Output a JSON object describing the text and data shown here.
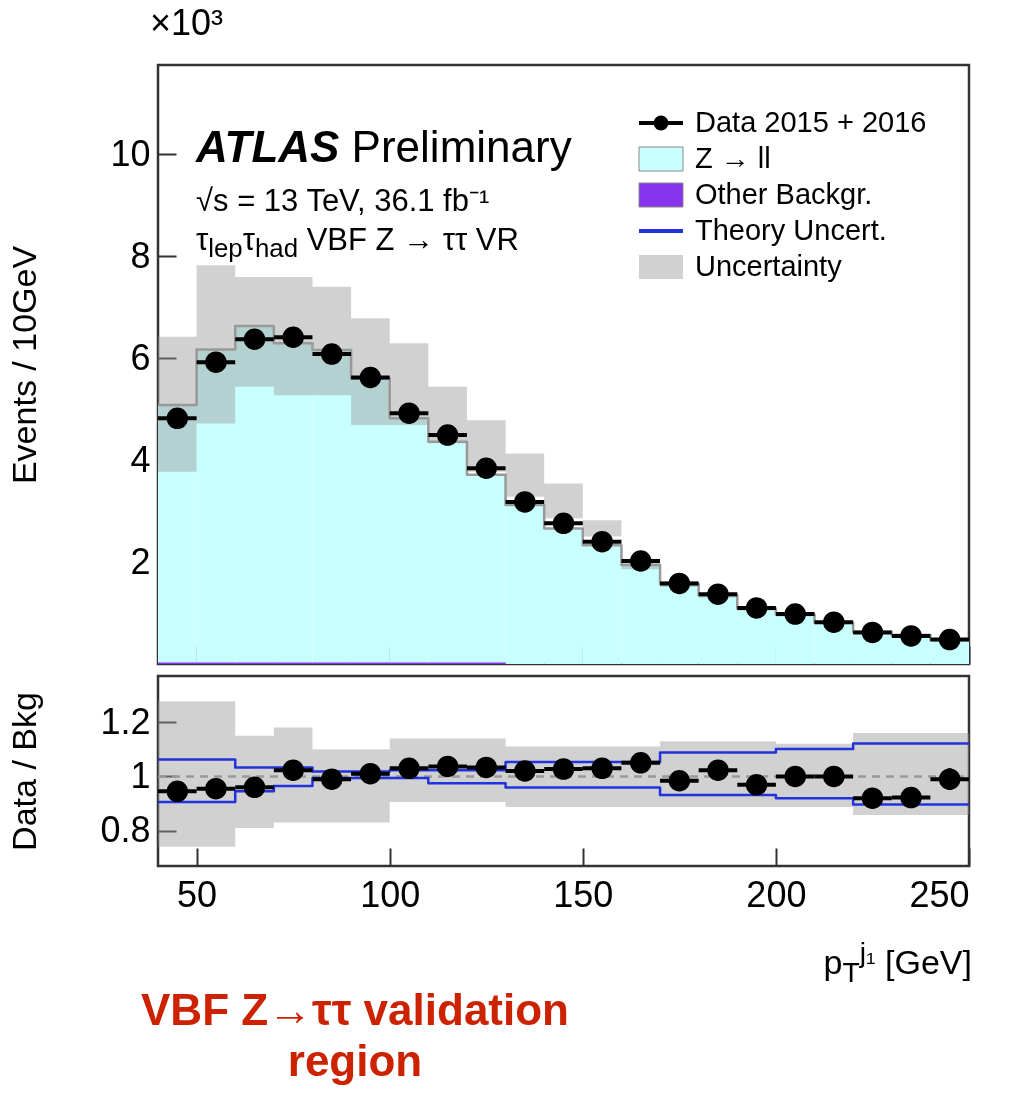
{
  "chart_data": [
    {
      "type": "histogram",
      "ylabel": "Events / 10GeV",
      "xlim": [
        40,
        250
      ],
      "xticks": [
        50,
        100,
        150,
        200,
        250
      ],
      "ylim": [
        0,
        11.75
      ],
      "yticks": [
        2,
        4,
        6,
        8,
        10
      ],
      "tick_labels": "y",
      "legend": "top right",
      "bins": [
        40,
        50,
        60,
        70,
        80,
        90,
        100,
        110,
        120,
        130,
        140,
        150,
        160,
        170,
        180,
        190,
        200,
        210,
        220,
        230,
        240,
        250
      ],
      "annotations": [
        "×10³",
        "ATLAS Preliminary",
        "√s = 13 TeV, 36.1 fb⁻¹",
        "τ$_{lep}$τ$_{had}$ VBF Z → ττ VR"
      ],
      "series": [
        {
          "name": "Data 2015 + 2016",
          "type": "scatter",
          "marker": "circle",
          "color": "#000000",
          "x": [
            45,
            55,
            65,
            75,
            85,
            95,
            105,
            115,
            125,
            135,
            145,
            155,
            165,
            175,
            185,
            195,
            205,
            215,
            225,
            235,
            245
          ],
          "values": [
            4.82,
            5.92,
            6.37,
            6.41,
            6.08,
            5.62,
            4.92,
            4.49,
            3.84,
            3.18,
            2.76,
            2.4,
            2.02,
            1.58,
            1.37,
            1.1,
            0.98,
            0.82,
            0.62,
            0.55,
            0.48
          ],
          "xerrors": [
            5,
            5,
            5,
            5,
            5,
            5,
            5,
            5,
            5,
            5,
            5,
            5,
            5,
            5,
            5,
            5,
            5,
            5,
            5,
            5,
            5
          ]
        },
        {
          "name": "Z → ll",
          "color": "#c8ffff",
          "values": [
            5.08,
            6.17,
            6.63,
            6.29,
            6.16,
            5.6,
            4.82,
            4.36,
            3.71,
            3.12,
            2.66,
            2.33,
            1.94,
            1.57,
            1.35,
            1.09,
            0.97,
            0.81,
            0.63,
            0.57,
            0.47
          ]
        },
        {
          "name": "Other Backgr.",
          "color": "#8833ee",
          "values": [
            0.03,
            0.03,
            0.03,
            0.03,
            0.03,
            0.03,
            0.03,
            0.03,
            0.03,
            null,
            null,
            null,
            null,
            null,
            null,
            null,
            null,
            null,
            null,
            null,
            null
          ]
        },
        {
          "name": "Uncertainty",
          "type": "step",
          "color": "#999999",
          "x": [
            40,
            50,
            60,
            70,
            80,
            90,
            100,
            110,
            120,
            130,
            140,
            150,
            160,
            170,
            180,
            190,
            200,
            210,
            220,
            230,
            240,
            250
          ],
          "values": [
            5.08,
            6.17,
            6.63,
            6.29,
            6.16,
            5.6,
            4.82,
            4.36,
            3.71,
            3.12,
            2.66,
            2.33,
            1.94,
            1.57,
            1.35,
            1.09,
            0.97,
            0.81,
            0.63,
            0.57,
            0.47,
            0.47
          ],
          "lower": [
            3.77,
            4.72,
            5.44,
            5.27,
            5.27,
            4.69,
            4.69,
            4.33,
            3.77,
            3.28,
            2.86,
            2.5,
            1.86,
            1.51,
            1.3,
            1.05,
            0.93,
            0.78,
            0.6,
            0.54,
            0.44,
            0.44
          ],
          "upper": [
            6.42,
            7.82,
            7.59,
            7.59,
            7.4,
            6.78,
            6.29,
            5.44,
            4.78,
            4.13,
            3.54,
            2.82,
            2.02,
            1.63,
            1.4,
            1.13,
            1.01,
            0.84,
            0.66,
            0.6,
            0.5,
            0.5
          ]
        }
      ]
    },
    {
      "type": "step",
      "ylabel": "Data / Bkg",
      "xlabel": "p$_{T}$$^{j₁}$ [GeV]",
      "xlim": [
        40,
        250
      ],
      "xticks": [
        50,
        100,
        150,
        200,
        250
      ],
      "ylim": [
        0.67,
        1.37
      ],
      "yticks": [
        0.8,
        1,
        1.2
      ],
      "annotations": [
        "VBF Z→ττ validation region"
      ],
      "series": [
        {
          "color": "#999999",
          "line_style": "dashed",
          "x": [
            40,
            50,
            60,
            70,
            80,
            90,
            100,
            110,
            120,
            130,
            140,
            150,
            160,
            170,
            180,
            190,
            200,
            210,
            220,
            230,
            240,
            250
          ],
          "values": [
            1,
            1,
            1,
            1,
            1,
            1,
            1,
            1,
            1,
            1,
            1,
            1,
            1,
            1,
            1,
            1,
            1,
            1,
            1,
            1,
            1,
            1
          ],
          "lower": [
            0.741,
            0.741,
            0.81,
            0.83,
            0.83,
            0.83,
            0.906,
            0.906,
            0.906,
            0.887,
            0.887,
            0.887,
            0.887,
            0.887,
            0.887,
            0.887,
            0.887,
            0.887,
            0.858,
            0.858,
            0.858,
            0.858
          ],
          "upper": [
            1.277,
            1.277,
            1.15,
            1.18,
            1.1,
            1.1,
            1.14,
            1.14,
            1.14,
            1.11,
            1.11,
            1.11,
            1.11,
            1.13,
            1.13,
            1.13,
            1.12,
            1.12,
            1.16,
            1.16,
            1.16,
            1.16
          ]
        },
        {
          "name": "Theory Uncert.",
          "color": "#2233dd",
          "x": [
            40,
            50,
            60,
            70,
            80,
            90,
            100,
            110,
            120,
            130,
            140,
            150,
            160,
            170,
            180,
            190,
            200,
            210,
            220,
            230,
            240,
            250
          ],
          "values": [
            1.062,
            1.062,
            1.033,
            1.033,
            1.018,
            1.018,
            1.023,
            1.023,
            1.023,
            1.053,
            1.053,
            1.053,
            1.053,
            1.088,
            1.088,
            1.088,
            1.101,
            1.101,
            1.121,
            1.121,
            1.121,
            1.121
          ]
        },
        {
          "color": "#2233dd",
          "x": [
            40,
            50,
            60,
            70,
            80,
            90,
            100,
            110,
            120,
            130,
            140,
            150,
            160,
            170,
            180,
            190,
            200,
            210,
            220,
            230,
            240,
            250
          ],
          "values": [
            0.906,
            0.906,
            0.945,
            0.965,
            0.994,
            0.994,
            0.994,
            0.975,
            0.975,
            0.959,
            0.959,
            0.959,
            0.959,
            0.932,
            0.932,
            0.932,
            0.92,
            0.92,
            0.897,
            0.897,
            0.897,
            0.897
          ]
        },
        {
          "type": "scatter",
          "marker": "circle",
          "color": "#000000",
          "x": [
            45,
            55,
            65,
            75,
            85,
            95,
            105,
            115,
            125,
            135,
            145,
            155,
            165,
            175,
            185,
            195,
            205,
            215,
            225,
            235,
            245
          ],
          "values": [
            0.945,
            0.955,
            0.96,
            1.023,
            0.99,
            1.01,
            1.03,
            1.037,
            1.033,
            1.02,
            1.027,
            1.03,
            1.05,
            0.984,
            1.023,
            0.969,
            1.0,
            1.0,
            0.92,
            0.922,
            0.99
          ],
          "xerrors": [
            5,
            5,
            5,
            5,
            5,
            5,
            5,
            5,
            5,
            5,
            5,
            5,
            5,
            5,
            5,
            5,
            5,
            5,
            5,
            5,
            5
          ],
          "errors": [
            null,
            null,
            null,
            null,
            null,
            null,
            null,
            null,
            null,
            null,
            null,
            null,
            null,
            null,
            null,
            null,
            null,
            null,
            null,
            null,
            0.04
          ]
        }
      ]
    }
  ]
}
